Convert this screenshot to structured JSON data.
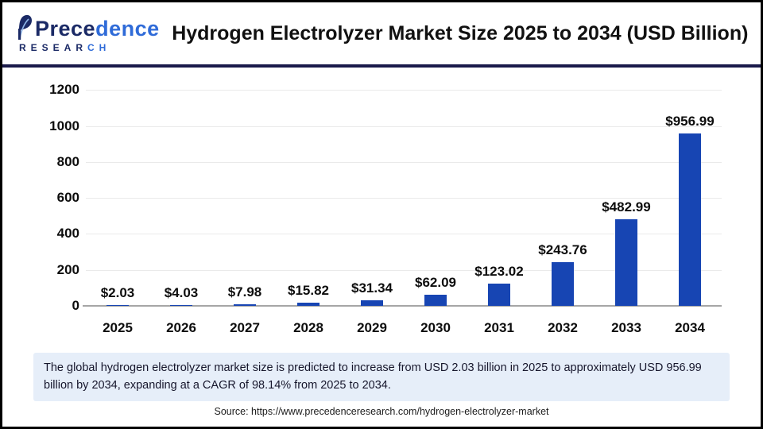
{
  "header": {
    "logo": {
      "name_part1": "Prece",
      "name_part2": "dence",
      "subtitle_part1": "RESEAR",
      "subtitle_part2": "CH"
    },
    "title": "Hydrogen Electrolyzer Market Size 2025 to 2034 (USD Billion)"
  },
  "chart_data": {
    "type": "bar",
    "title": "Hydrogen Electrolyzer Market Size 2025 to 2034 (USD Billion)",
    "categories": [
      "2025",
      "2026",
      "2027",
      "2028",
      "2029",
      "2030",
      "2031",
      "2032",
      "2033",
      "2034"
    ],
    "values": [
      2.03,
      4.03,
      7.98,
      15.82,
      31.34,
      62.09,
      123.02,
      243.76,
      482.99,
      956.99
    ],
    "value_labels": [
      "$2.03",
      "$4.03",
      "$7.98",
      "$15.82",
      "$31.34",
      "$62.09",
      "$123.02",
      "$243.76",
      "$482.99",
      "$956.99"
    ],
    "xlabel": "",
    "ylabel": "",
    "ylim": [
      0,
      1200
    ],
    "yticks": [
      0,
      200,
      400,
      600,
      800,
      1000,
      1200
    ],
    "grid": true,
    "legend_position": "none",
    "bar_color": "#1745b3"
  },
  "callout": {
    "text": "The global hydrogen electrolyzer market size is predicted to increase from USD 2.03 billion in 2025 to approximately USD 956.99 billion by 2034, expanding at a CAGR of 98.14% from 2025 to 2034."
  },
  "source": {
    "text": "Source: https://www.precedenceresearch.com/hydrogen-electrolyzer-market"
  },
  "colors": {
    "bar": "#1745b3",
    "divider": "#1a1a4a",
    "callout_bg": "#e6eef9",
    "logo_navy": "#1b2a66",
    "logo_blue": "#2f6bd8"
  }
}
